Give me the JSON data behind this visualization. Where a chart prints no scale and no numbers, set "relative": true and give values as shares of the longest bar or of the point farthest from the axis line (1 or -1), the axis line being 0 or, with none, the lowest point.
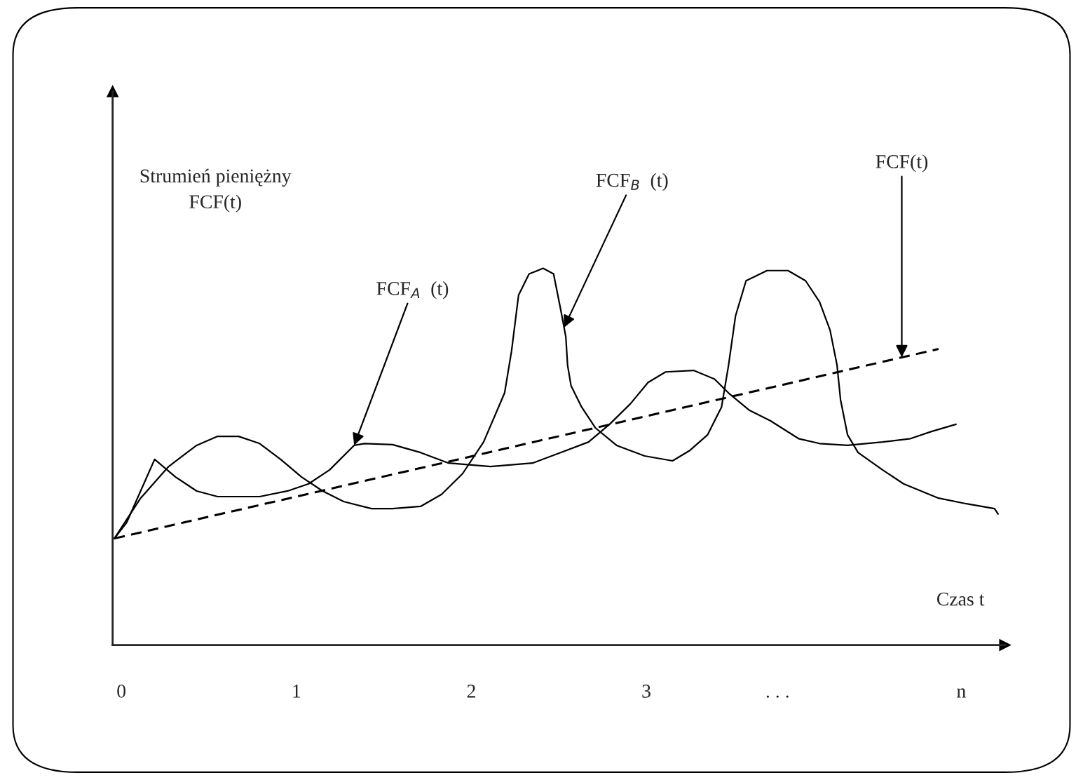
{
  "chart_data": {
    "type": "line",
    "relative": true,
    "xlabel": "Czas t",
    "ylabel": "Strumień pieniężny\nFCF(t)",
    "xlim": [
      -0.05,
      5.05
    ],
    "xticks": [
      0,
      1,
      2,
      3,
      {
        "value": 3.75,
        "label": ". . ."
      },
      {
        "value": 4.8,
        "label": "n"
      }
    ],
    "grid": false,
    "legend": false,
    "series": [
      {
        "color": "#000000",
        "line_style": "solid",
        "x": [
          -0.04,
          0.03,
          0.11,
          0.19,
          0.31,
          0.43,
          0.55,
          0.79,
          0.95,
          1.07,
          1.19,
          1.33,
          1.39,
          1.55,
          1.71,
          1.87,
          2.11,
          2.35,
          2.51,
          2.67,
          2.79,
          2.91,
          3.01,
          3.11,
          3.27,
          3.39,
          3.47,
          3.59,
          3.71,
          3.87,
          3.99,
          4.15,
          4.35,
          4.51,
          4.63,
          4.77
        ],
        "values": [
          0.283,
          0.325,
          0.409,
          0.493,
          0.446,
          0.409,
          0.394,
          0.394,
          0.409,
          0.428,
          0.465,
          0.53,
          0.535,
          0.532,
          0.511,
          0.483,
          0.474,
          0.483,
          0.511,
          0.539,
          0.586,
          0.641,
          0.697,
          0.725,
          0.729,
          0.706,
          0.669,
          0.623,
          0.595,
          0.548,
          0.535,
          0.53,
          0.539,
          0.548,
          0.567,
          0.586
        ]
      },
      {
        "color": "#000000",
        "line_style": "solid",
        "x": [
          -0.04,
          0.11,
          0.27,
          0.43,
          0.55,
          0.67,
          0.79,
          0.91,
          1.03,
          1.15,
          1.27,
          1.43,
          1.55,
          1.71,
          1.83,
          1.95,
          2.07,
          2.19,
          2.23,
          2.27,
          2.33,
          2.41,
          2.47,
          2.51,
          2.54,
          2.55,
          2.57,
          2.63,
          2.71,
          2.83,
          2.99,
          3.15,
          3.25,
          3.35,
          3.43,
          3.47,
          3.51,
          3.57,
          3.69,
          3.81,
          3.91,
          3.99,
          4.05,
          4.09,
          4.11,
          4.15,
          4.21,
          4.35,
          4.47,
          4.67,
          4.83,
          4.99,
          5.01
        ],
        "values": [
          0.283,
          0.39,
          0.474,
          0.53,
          0.554,
          0.554,
          0.535,
          0.493,
          0.446,
          0.409,
          0.381,
          0.362,
          0.362,
          0.368,
          0.4,
          0.455,
          0.539,
          0.669,
          0.781,
          0.929,
          0.985,
          1.0,
          0.985,
          0.892,
          0.818,
          0.743,
          0.688,
          0.632,
          0.576,
          0.53,
          0.502,
          0.489,
          0.517,
          0.558,
          0.632,
          0.743,
          0.874,
          0.967,
          0.994,
          0.994,
          0.967,
          0.911,
          0.836,
          0.743,
          0.651,
          0.558,
          0.511,
          0.465,
          0.428,
          0.39,
          0.375,
          0.362,
          0.348
        ]
      },
      {
        "color": "#000000",
        "line_style": "dashed",
        "x": [
          -0.04,
          4.67
        ],
        "values": [
          0.283,
          0.786
        ]
      }
    ],
    "annotations": [
      {
        "text": "FCF$_{A}$  (t)",
        "x": 1.33,
        "y": 0.53
      },
      {
        "text": "FCF$_{B}$  (t)",
        "x": 2.53,
        "y": 0.843
      },
      {
        "text": "FCF(t)",
        "x": 4.46,
        "y": 0.764
      }
    ]
  }
}
